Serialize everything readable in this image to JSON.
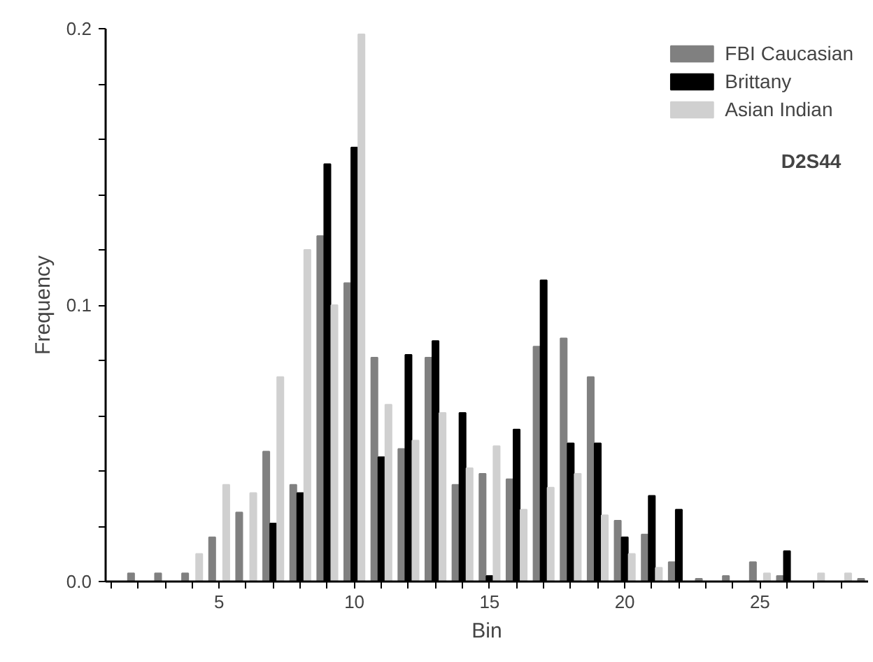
{
  "chart_data": {
    "type": "bar",
    "xlabel": "Bin",
    "ylabel": "Frequency",
    "annotations": [
      "D2S44"
    ],
    "x": [
      2,
      3,
      4,
      5,
      6,
      7,
      8,
      9,
      10,
      11,
      12,
      13,
      14,
      15,
      16,
      17,
      18,
      19,
      20,
      21,
      22,
      23,
      24,
      25,
      26,
      27,
      28,
      29
    ],
    "series": [
      {
        "name": "FBI Caucasian",
        "color": "#808080",
        "values": [
          0.003,
          0.003,
          0.003,
          0.016,
          0.025,
          0.047,
          0.035,
          0.125,
          0.108,
          0.081,
          0.048,
          0.081,
          0.035,
          0.039,
          0.037,
          0.085,
          0.088,
          0.074,
          0.022,
          0.017,
          0.007,
          0.001,
          0.002,
          0.007,
          0.002,
          null,
          null,
          0.001
        ]
      },
      {
        "name": "Brittany",
        "color": "#000000",
        "values": [
          null,
          null,
          null,
          null,
          null,
          0.021,
          0.032,
          0.151,
          0.157,
          0.045,
          0.082,
          0.087,
          0.061,
          0.002,
          0.055,
          0.109,
          0.05,
          0.05,
          0.016,
          0.031,
          0.026,
          null,
          null,
          null,
          0.011,
          null,
          null,
          null
        ]
      },
      {
        "name": "Asian Indian",
        "color": "#d0d0d0",
        "values": [
          null,
          null,
          0.01,
          0.035,
          0.032,
          0.074,
          0.12,
          0.1,
          0.198,
          0.064,
          0.051,
          0.061,
          0.041,
          0.049,
          0.026,
          0.034,
          0.039,
          0.024,
          0.01,
          0.005,
          null,
          null,
          null,
          0.003,
          null,
          0.003,
          0.003,
          null
        ]
      }
    ],
    "xlim": [
      0.8,
      29
    ],
    "ylim": [
      0,
      0.2
    ],
    "xticks": [
      {
        "value": 1,
        "label": null
      },
      {
        "value": 2,
        "label": null
      },
      {
        "value": 3,
        "label": null
      },
      {
        "value": 4,
        "label": null
      },
      5,
      {
        "value": 6,
        "label": null
      },
      {
        "value": 7,
        "label": null
      },
      {
        "value": 8,
        "label": null
      },
      {
        "value": 9,
        "label": null
      },
      10,
      {
        "value": 11,
        "label": null
      },
      {
        "value": 12,
        "label": null
      },
      {
        "value": 13,
        "label": null
      },
      {
        "value": 14,
        "label": null
      },
      15,
      {
        "value": 16,
        "label": null
      },
      {
        "value": 17,
        "label": null
      },
      {
        "value": 18,
        "label": null
      },
      {
        "value": 19,
        "label": null
      },
      20,
      {
        "value": 21,
        "label": null
      },
      {
        "value": 22,
        "label": null
      },
      {
        "value": 23,
        "label": null
      },
      {
        "value": 24,
        "label": null
      },
      25,
      {
        "value": 26,
        "label": null
      },
      {
        "value": 27,
        "label": null
      },
      {
        "value": 28,
        "label": null
      }
    ],
    "yticks": [
      {
        "value": 0,
        "label": "0.0"
      },
      {
        "value": 0.02,
        "label": null
      },
      {
        "value": 0.04,
        "label": null
      },
      {
        "value": 0.06,
        "label": null
      },
      {
        "value": 0.08,
        "label": null
      },
      {
        "value": 0.1,
        "label": "0.1"
      },
      {
        "value": 0.12,
        "label": null
      },
      {
        "value": 0.14,
        "label": null
      },
      {
        "value": 0.16,
        "label": null
      },
      {
        "value": 0.18,
        "label": null
      },
      {
        "value": 0.2,
        "label": "0.2"
      }
    ],
    "grid": false,
    "legend": "top right"
  }
}
